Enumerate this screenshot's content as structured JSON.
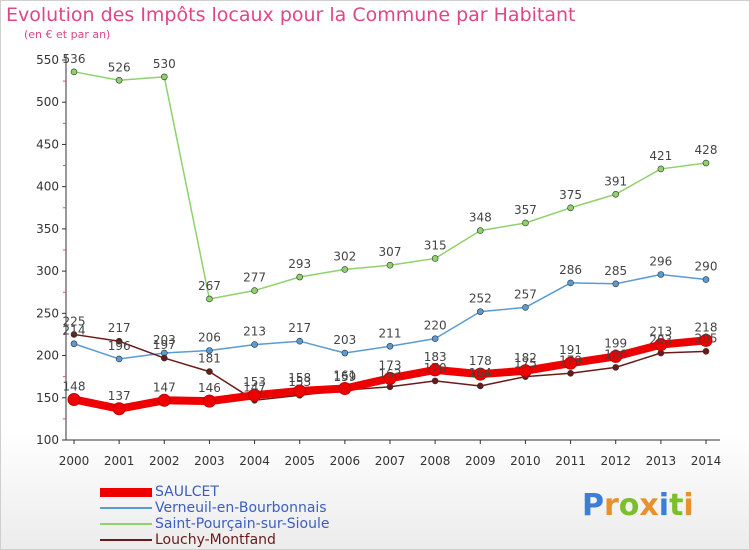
{
  "title": "Evolution des Impôts locaux pour la Commune par Habitant",
  "subtitle": "(en € et par an)",
  "logo": {
    "text": "Proxiti",
    "colors": [
      "#3a7fd5",
      "#e8912c",
      "#7bbf2e",
      "#e8912c",
      "#3a7fd5",
      "#7bbf2e",
      "#e8912c"
    ]
  },
  "chart_data": {
    "type": "line",
    "x": [
      "2000",
      "2001",
      "2002",
      "2003",
      "2004",
      "2005",
      "2006",
      "2007",
      "2008",
      "2009",
      "2010",
      "2011",
      "2012",
      "2013",
      "2014"
    ],
    "ylim": [
      100,
      550
    ],
    "yticks": [
      100,
      150,
      200,
      250,
      300,
      350,
      400,
      450,
      500,
      550
    ],
    "grid": false,
    "legend_position": "bottom-left",
    "series": [
      {
        "name": "SAULCET",
        "color": "#ee0000",
        "values": [
          148,
          137,
          147,
          146,
          153,
          158,
          161,
          173,
          183,
          178,
          182,
          191,
          199,
          213,
          218
        ]
      },
      {
        "name": "Verneuil-en-Bourbonnais",
        "color": "#5a9bd4",
        "values": [
          214,
          196,
          203,
          206,
          213,
          217,
          203,
          211,
          220,
          252,
          257,
          286,
          285,
          296,
          290
        ]
      },
      {
        "name": "Saint-Pourçain-sur-Sioule",
        "color": "#8fd16a",
        "values": [
          536,
          526,
          530,
          267,
          277,
          293,
          302,
          307,
          315,
          348,
          357,
          375,
          391,
          421,
          428
        ]
      },
      {
        "name": "Louchy-Montfand",
        "color": "#6b1a1a",
        "values": [
          225,
          217,
          197,
          181,
          147,
          153,
          159,
          163,
          170,
          164,
          175,
          179,
          186,
          203,
          205
        ]
      }
    ]
  }
}
